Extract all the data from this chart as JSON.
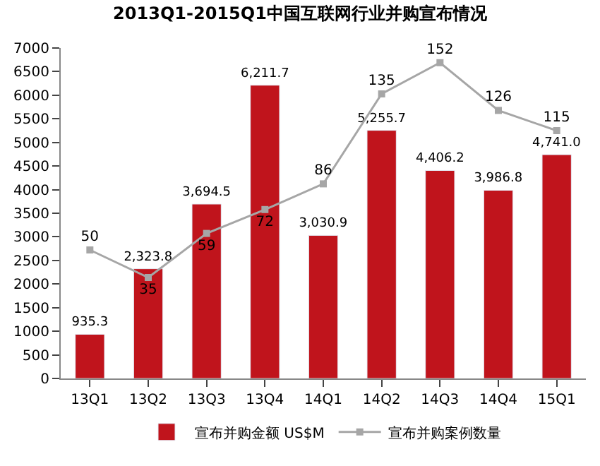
{
  "chart_data": {
    "type": "bar",
    "title": "2013Q1-2015Q1中国互联网行业并购宣布情况",
    "categories": [
      "13Q1",
      "13Q2",
      "13Q3",
      "13Q4",
      "14Q1",
      "14Q2",
      "14Q3",
      "14Q4",
      "15Q1"
    ],
    "series": [
      {
        "name": "宣布并购金额 US$M",
        "color": "#c0141c",
        "values": [
          935.3,
          2323.8,
          3694.5,
          6211.7,
          3030.9,
          5255.7,
          4406.2,
          3986.8,
          4741.0
        ],
        "value_labels": [
          "935.3",
          "2,323.8",
          "3,694.5",
          "6,211.7",
          "3,030.9",
          "5,255.7",
          "4,406.2",
          "3,986.8",
          "4,741.0"
        ]
      },
      {
        "name": "宣布并购案例数量",
        "type": "line",
        "axis": "y2",
        "color": "#a6a6a6",
        "marker": "square",
        "values": [
          50,
          35,
          59,
          72,
          86,
          135,
          152,
          126,
          115
        ],
        "value_labels": [
          "50",
          "35",
          "59",
          "72",
          "86",
          "135",
          "152",
          "126",
          "115"
        ]
      }
    ],
    "ylim": [
      0,
      7000
    ],
    "yticks": [
      0,
      500,
      1000,
      1500,
      2000,
      2500,
      3000,
      3500,
      4000,
      4500,
      5000,
      5500,
      6000,
      6500,
      7000
    ],
    "y2lim": [
      -20,
      160
    ],
    "legend": "bottom"
  }
}
